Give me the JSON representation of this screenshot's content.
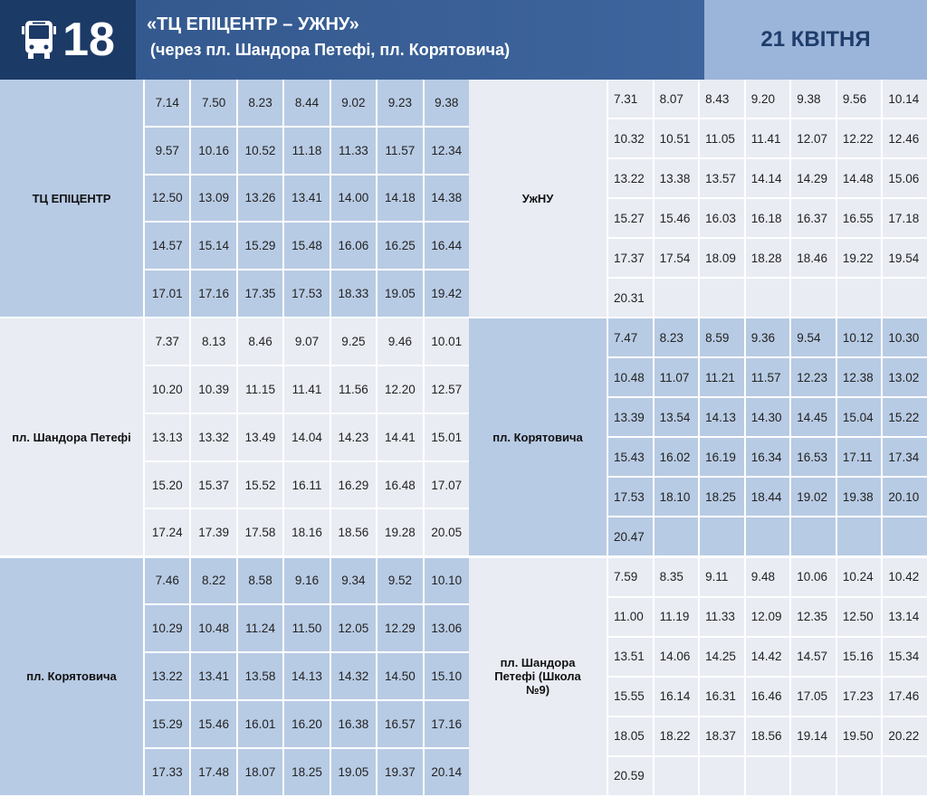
{
  "header": {
    "route_number": "18",
    "title": "«ТЦ ЕПІЦЕНТР – УЖНУ»",
    "subtitle": "(через пл. Шандора Петефі, пл. Корятовича)",
    "date": "21 КВІТНЯ",
    "icon": "bus-icon"
  },
  "colors": {
    "dark": "#1c3a66",
    "title_bg": "#3a5f95",
    "date_bg": "#9bb4d9",
    "cell_blue": "#b8cbe4",
    "cell_light": "#e9ecf3"
  },
  "sections": [
    {
      "left": {
        "stop": "ТЦ ЕПІЦЕНТР",
        "times": [
          "7.14",
          "7.50",
          "8.23",
          "8.44",
          "9.02",
          "9.23",
          "9.38",
          "9.57",
          "10.16",
          "10.52",
          "11.18",
          "11.33",
          "11.57",
          "12.34",
          "12.50",
          "13.09",
          "13.26",
          "13.41",
          "14.00",
          "14.18",
          "14.38",
          "14.57",
          "15.14",
          "15.29",
          "15.48",
          "16.06",
          "16.25",
          "16.44",
          "17.01",
          "17.16",
          "17.35",
          "17.53",
          "18.33",
          "19.05",
          "19.42"
        ]
      },
      "right": {
        "stop": "УжНУ",
        "times": [
          "7.31",
          "8.07",
          "8.43",
          "9.20",
          "9.38",
          "9.56",
          "10.14",
          "10.32",
          "10.51",
          "11.05",
          "11.41",
          "12.07",
          "12.22",
          "12.46",
          "13.22",
          "13.38",
          "13.57",
          "14.14",
          "14.29",
          "14.48",
          "15.06",
          "15.27",
          "15.46",
          "16.03",
          "16.18",
          "16.37",
          "16.55",
          "17.18",
          "17.37",
          "17.54",
          "18.09",
          "18.28",
          "18.46",
          "19.22",
          "19.54",
          "20.31"
        ]
      }
    },
    {
      "left": {
        "stop": "пл. Шандора Петефі",
        "times": [
          "7.37",
          "8.13",
          "8.46",
          "9.07",
          "9.25",
          "9.46",
          "10.01",
          "10.20",
          "10.39",
          "11.15",
          "11.41",
          "11.56",
          "12.20",
          "12.57",
          "13.13",
          "13.32",
          "13.49",
          "14.04",
          "14.23",
          "14.41",
          "15.01",
          "15.20",
          "15.37",
          "15.52",
          "16.11",
          "16.29",
          "16.48",
          "17.07",
          "17.24",
          "17.39",
          "17.58",
          "18.16",
          "18.56",
          "19.28",
          "20.05"
        ]
      },
      "right": {
        "stop": "пл. Корятовича",
        "times": [
          "7.47",
          "8.23",
          "8.59",
          "9.36",
          "9.54",
          "10.12",
          "10.30",
          "10.48",
          "11.07",
          "11.21",
          "11.57",
          "12.23",
          "12.38",
          "13.02",
          "13.39",
          "13.54",
          "14.13",
          "14.30",
          "14.45",
          "15.04",
          "15.22",
          "15.43",
          "16.02",
          "16.19",
          "16.34",
          "16.53",
          "17.11",
          "17.34",
          "17.53",
          "18.10",
          "18.25",
          "18.44",
          "19.02",
          "19.38",
          "20.10",
          "20.47"
        ]
      }
    },
    {
      "left": {
        "stop": "пл. Корятовича",
        "times": [
          "7.46",
          "8.22",
          "8.58",
          "9.16",
          "9.34",
          "9.52",
          "10.10",
          "10.29",
          "10.48",
          "11.24",
          "11.50",
          "12.05",
          "12.29",
          "13.06",
          "13.22",
          "13.41",
          "13.58",
          "14.13",
          "14.32",
          "14.50",
          "15.10",
          "15.29",
          "15.46",
          "16.01",
          "16.20",
          "16.38",
          "16.57",
          "17.16",
          "17.33",
          "17.48",
          "18.07",
          "18.25",
          "19.05",
          "19.37",
          "20.14"
        ]
      },
      "right": {
        "stop": "пл. Шандора Петефі (Школа №9)",
        "times": [
          "7.59",
          "8.35",
          "9.11",
          "9.48",
          "10.06",
          "10.24",
          "10.42",
          "11.00",
          "11.19",
          "11.33",
          "12.09",
          "12.35",
          "12.50",
          "13.14",
          "13.51",
          "14.06",
          "14.25",
          "14.42",
          "14.57",
          "15.16",
          "15.34",
          "15.55",
          "16.14",
          "16.31",
          "16.46",
          "17.05",
          "17.23",
          "17.46",
          "18.05",
          "18.22",
          "18.37",
          "18.56",
          "19.14",
          "19.50",
          "20.22",
          "20.59"
        ]
      }
    }
  ]
}
